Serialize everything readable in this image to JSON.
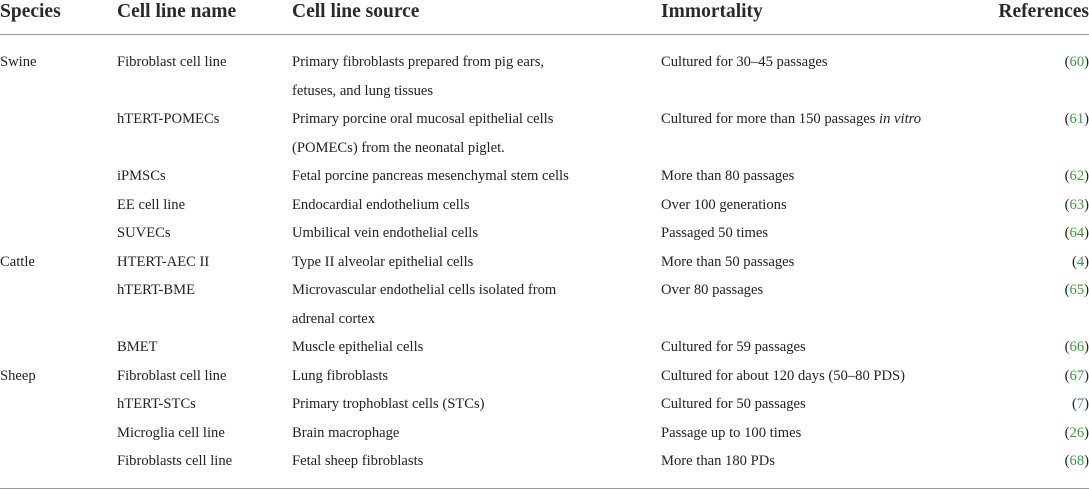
{
  "headers": {
    "species": "Species",
    "cell_line_name": "Cell line name",
    "cell_line_source": "Cell line source",
    "immortality": "Immortality",
    "references": "References"
  },
  "rows": [
    {
      "species": "Swine",
      "name": "Fibroblast cell line",
      "source": [
        "Primary fibroblasts prepared from pig ears,",
        "fetuses, and lung tissues"
      ],
      "immortality": "Cultured for 30–45 passages",
      "immortality_italic": "",
      "ref": "60"
    },
    {
      "species": "",
      "name": "hTERT-POMECs",
      "source": [
        "Primary porcine oral mucosal epithelial cells",
        "(POMECs) from the neonatal piglet."
      ],
      "immortality": "Cultured for more than 150 passages ",
      "immortality_italic": "in vitro",
      "ref": "61"
    },
    {
      "species": "",
      "name": "iPMSCs",
      "source": [
        "Fetal porcine pancreas mesenchymal stem cells"
      ],
      "immortality": "More than 80 passages",
      "immortality_italic": "",
      "ref": "62"
    },
    {
      "species": "",
      "name": "EE cell line",
      "source": [
        "Endocardial endothelium cells"
      ],
      "immortality": "Over 100 generations",
      "immortality_italic": "",
      "ref": "63"
    },
    {
      "species": "",
      "name": "SUVECs",
      "source": [
        "Umbilical vein endothelial cells"
      ],
      "immortality": "Passaged 50 times",
      "immortality_italic": "",
      "ref": "64"
    },
    {
      "species": "Cattle",
      "name": "HTERT-AEC II",
      "source": [
        "Type II alveolar epithelial cells"
      ],
      "immortality": "More than 50 passages",
      "immortality_italic": "",
      "ref": "4"
    },
    {
      "species": "",
      "name": "hTERT-BME",
      "source": [
        "Microvascular endothelial cells isolated from",
        "adrenal cortex"
      ],
      "immortality": "Over 80 passages",
      "immortality_italic": "",
      "ref": "65"
    },
    {
      "species": "",
      "name": "BMET",
      "source": [
        "Muscle epithelial cells"
      ],
      "immortality": "Cultured for 59 passages",
      "immortality_italic": "",
      "ref": "66"
    },
    {
      "species": "Sheep",
      "name": "Fibroblast cell line",
      "source": [
        "Lung fibroblasts"
      ],
      "immortality": "Cultured for about 120 days (50–80 PDS)",
      "immortality_italic": "",
      "ref": "67"
    },
    {
      "species": "",
      "name": "hTERT-STCs",
      "source": [
        "Primary trophoblast cells (STCs)"
      ],
      "immortality": "Cultured for 50 passages",
      "immortality_italic": "",
      "ref": "7"
    },
    {
      "species": "",
      "name": "Microglia cell line",
      "source": [
        "Brain macrophage"
      ],
      "immortality": "Passage up to 100 times",
      "immortality_italic": "",
      "ref": "26"
    },
    {
      "species": "",
      "name": "Fibroblasts cell line",
      "source": [
        "Fetal sheep fibroblasts"
      ],
      "immortality": "More than 180 PDs",
      "immortality_italic": "",
      "ref": "68"
    }
  ]
}
